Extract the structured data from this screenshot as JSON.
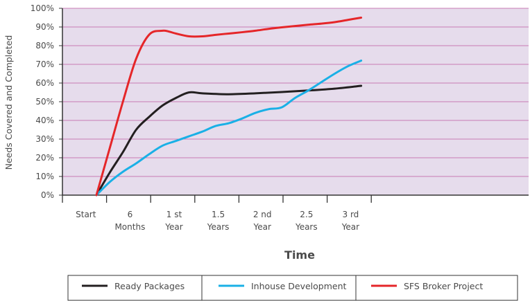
{
  "chart_data": {
    "type": "line",
    "title": "",
    "xlabel": "Time",
    "ylabel": "Needs Covered and Completed",
    "ylim": [
      0,
      100
    ],
    "yticks": [
      "0%",
      "10%",
      "20%",
      "30%",
      "40%",
      "50%",
      "60%",
      "70%",
      "80%",
      "90%",
      "100%"
    ],
    "categories": [
      [
        "Start"
      ],
      [
        "6",
        "Months"
      ],
      [
        "1 st",
        "Year"
      ],
      [
        "1.5",
        "Years"
      ],
      [
        "2 nd",
        "Year"
      ],
      [
        "2.5",
        "Years"
      ],
      [
        "3 rd",
        "Year"
      ]
    ],
    "grid": "horizontal",
    "legend_position": "bottom",
    "background_color": "#e6dcec",
    "grid_color": "#c87ab4",
    "series": [
      {
        "name": "Ready Packages",
        "color": "#231f20",
        "x": [
          0,
          0.3,
          0.6,
          0.9,
          1.2,
          1.5,
          1.8,
          2.1,
          2.4,
          3,
          3.6,
          4.2,
          4.8,
          5.4,
          6
        ],
        "y": [
          0,
          12,
          23,
          35,
          42,
          48,
          52,
          55,
          54.5,
          54,
          54.5,
          55.2,
          56,
          57,
          58.5
        ]
      },
      {
        "name": "Inhouse Development",
        "color": "#1ab0e6",
        "x": [
          0,
          0.3,
          0.6,
          0.9,
          1.2,
          1.5,
          1.8,
          2.1,
          2.4,
          2.7,
          3,
          3.3,
          3.6,
          3.9,
          4.2,
          4.5,
          4.8,
          5.1,
          5.4,
          5.7,
          6
        ],
        "y": [
          0,
          7,
          12.5,
          17,
          22,
          26.5,
          29,
          31.5,
          34,
          37,
          38.5,
          41,
          44,
          46,
          47,
          52,
          56,
          60.5,
          65,
          69,
          72
        ]
      },
      {
        "name": "SFS Broker Project",
        "color": "#e52629",
        "x": [
          0,
          0.3,
          0.6,
          0.9,
          1.2,
          1.5,
          1.65,
          1.8,
          2.1,
          2.4,
          2.7,
          3,
          3.3,
          3.6,
          3.9,
          4.2,
          4.5,
          4.8,
          5.1,
          5.4,
          5.7,
          6
        ],
        "y": [
          0,
          25,
          50,
          73,
          86,
          88,
          87.5,
          86.5,
          85,
          85,
          85.8,
          86.5,
          87.2,
          88,
          89,
          89.8,
          90.5,
          91.2,
          91.8,
          92.6,
          93.8,
          95
        ]
      }
    ]
  }
}
